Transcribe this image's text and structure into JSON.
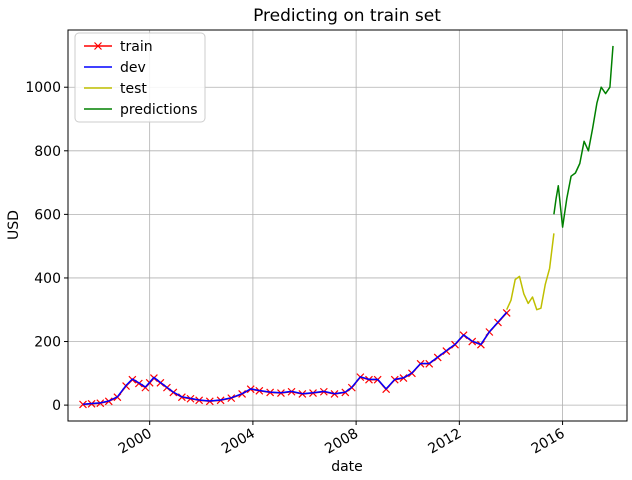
{
  "chart_data": {
    "type": "line",
    "title": "Predicting on train set",
    "xlabel": "date",
    "ylabel": "USD",
    "grid": true,
    "legend_position": "top-left",
    "x_ticks": [
      "2000",
      "2004",
      "2008",
      "2012",
      "2016"
    ],
    "y_ticks": [
      "0",
      "200",
      "400",
      "600",
      "800",
      "1000"
    ],
    "xlim": [
      "1996-11-01",
      "2018-07-01"
    ],
    "ylim": [
      -50,
      1180
    ],
    "series": [
      {
        "name": "train",
        "color": "#ff0000",
        "marker": "x",
        "x": [
          "1997-06-01",
          "1997-10-01",
          "1998-02-01",
          "1998-06-01",
          "1998-10-01",
          "1999-02-01",
          "1999-05-01",
          "1999-08-01",
          "1999-11-01",
          "2000-01-01",
          "2000-03-01",
          "2000-06-01",
          "2000-09-01",
          "2000-12-01",
          "2001-04-01",
          "2001-08-01",
          "2001-12-01",
          "2002-05-01",
          "2002-10-01",
          "2003-03-01",
          "2003-08-01",
          "2003-12-01",
          "2004-04-01",
          "2004-09-01",
          "2005-02-01",
          "2005-07-01",
          "2005-12-01",
          "2006-05-01",
          "2006-10-01",
          "2007-03-01",
          "2007-08-01",
          "2007-11-01",
          "2008-03-01",
          "2008-07-01",
          "2008-11-01",
          "2009-03-01",
          "2009-07-01",
          "2009-11-01",
          "2010-03-01",
          "2010-07-01",
          "2010-11-01",
          "2011-03-01",
          "2011-07-01",
          "2011-11-01",
          "2012-03-01",
          "2012-07-01",
          "2012-11-01",
          "2013-03-01",
          "2013-07-01",
          "2013-11-01"
        ],
        "values": [
          2,
          4,
          6,
          12,
          25,
          60,
          80,
          68,
          55,
          70,
          85,
          70,
          55,
          40,
          25,
          20,
          15,
          12,
          15,
          22,
          35,
          50,
          45,
          40,
          38,
          42,
          35,
          38,
          42,
          35,
          40,
          55,
          88,
          80,
          80,
          50,
          80,
          85,
          100,
          130,
          130,
          150,
          170,
          190,
          220,
          200,
          190,
          230,
          260,
          290
        ]
      },
      {
        "name": "dev",
        "color": "#0000ff",
        "x": [
          "1997-06-01",
          "1997-10-01",
          "1998-02-01",
          "1998-06-01",
          "1998-10-01",
          "1999-02-01",
          "1999-05-01",
          "1999-08-01",
          "1999-11-01",
          "2000-01-01",
          "2000-03-01",
          "2000-06-01",
          "2000-09-01",
          "2000-12-01",
          "2001-04-01",
          "2001-08-01",
          "2001-12-01",
          "2002-05-01",
          "2002-10-01",
          "2003-03-01",
          "2003-08-01",
          "2003-12-01",
          "2004-04-01",
          "2004-09-01",
          "2005-02-01",
          "2005-07-01",
          "2005-12-01",
          "2006-05-01",
          "2006-10-01",
          "2007-03-01",
          "2007-08-01",
          "2007-11-01",
          "2008-03-01",
          "2008-07-01",
          "2008-11-01",
          "2009-03-01",
          "2009-07-01",
          "2009-11-01",
          "2010-03-01",
          "2010-07-01",
          "2010-11-01",
          "2011-03-01",
          "2011-07-01",
          "2011-11-01",
          "2012-03-01",
          "2012-07-01",
          "2012-11-01",
          "2013-03-01",
          "2013-07-01",
          "2013-11-01"
        ],
        "values": [
          3,
          5,
          7,
          13,
          26,
          62,
          82,
          70,
          57,
          72,
          87,
          71,
          56,
          41,
          26,
          21,
          16,
          13,
          16,
          23,
          36,
          51,
          46,
          41,
          39,
          43,
          36,
          39,
          43,
          36,
          41,
          56,
          89,
          81,
          81,
          51,
          81,
          86,
          101,
          131,
          131,
          151,
          171,
          191,
          221,
          201,
          191,
          231,
          261,
          292
        ]
      },
      {
        "name": "test",
        "color": "#bfbf00",
        "x": [
          "2013-11-01",
          "2014-01-01",
          "2014-03-01",
          "2014-05-01",
          "2014-07-01",
          "2014-09-01",
          "2014-11-01",
          "2015-01-01",
          "2015-03-01",
          "2015-05-01",
          "2015-07-01",
          "2015-09-01"
        ],
        "values": [
          300,
          330,
          395,
          405,
          350,
          320,
          340,
          300,
          305,
          380,
          430,
          540
        ]
      },
      {
        "name": "predictions",
        "color": "#008000",
        "x": [
          "2015-09-01",
          "2015-10-01",
          "2015-11-01",
          "2016-01-01",
          "2016-03-01",
          "2016-05-01",
          "2016-07-01",
          "2016-09-01",
          "2016-11-01",
          "2017-01-01",
          "2017-03-01",
          "2017-05-01",
          "2017-07-01",
          "2017-09-01",
          "2017-11-01",
          "2017-12-15"
        ],
        "values": [
          600,
          650,
          690,
          560,
          650,
          720,
          730,
          760,
          830,
          800,
          870,
          950,
          1000,
          980,
          1000,
          1130
        ]
      }
    ]
  }
}
